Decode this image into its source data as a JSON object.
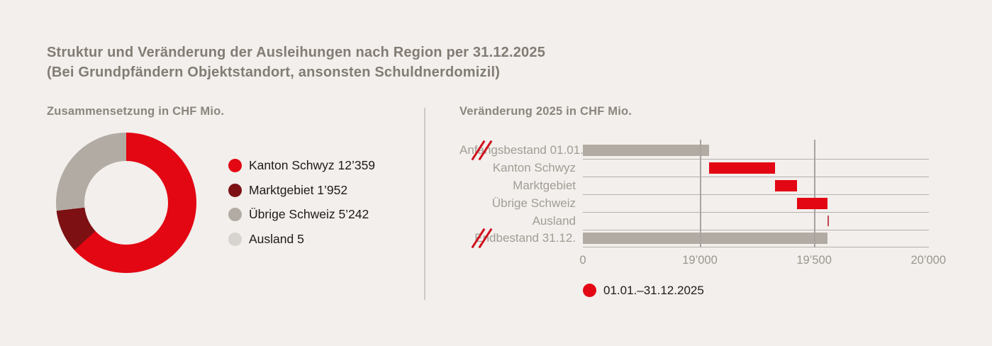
{
  "header": {
    "title_line1": "Struktur und Veränderung der Ausleihungen nach Region per 31.12.2025",
    "title_line2": "(Bei Grundpfändern Objektstandort, ansonsten Schuldnerdomizil)"
  },
  "colors": {
    "background": "#f2efec",
    "red": "#e30613",
    "dark_red": "#7c1013",
    "gray": "#b2aba3",
    "light_gray": "#d7d3ce",
    "ausland_tick_red": "#c04a52"
  },
  "chart_data": [
    {
      "type": "pie",
      "variant": "donut",
      "title": "Zusammensetzung in CHF Mio.",
      "segments": [
        {
          "label": "Kanton Schwyz",
          "value": 12359,
          "value_display": "12’359",
          "color": "#e30613"
        },
        {
          "label": "Marktgebiet",
          "value": 1952,
          "value_display": "1’952",
          "color": "#7c1013"
        },
        {
          "label": "Übrige Schweiz",
          "value": 5242,
          "value_display": "5’242",
          "color": "#b2aba3"
        },
        {
          "label": "Ausland",
          "value": 5,
          "value_display": "5",
          "color": "#d7d3ce"
        }
      ],
      "total": 19558,
      "legend_position": "right"
    },
    {
      "type": "bar",
      "variant": "horizontal-waterfall",
      "title": "Veränderung 2025 in CHF Mio.",
      "axis": {
        "ticks": [
          {
            "label": "0",
            "value": 0
          },
          {
            "label": "19’000",
            "value": 19000
          },
          {
            "label": "19’500",
            "value": 19500
          },
          {
            "label": "20’000",
            "value": 20000
          }
        ],
        "broken_axis_after_zero": true,
        "gridlines_at": [
          19000,
          19500
        ]
      },
      "rows": [
        {
          "label": "Anfangsbestand 01.01.",
          "start": 0,
          "end": 19040,
          "color": "gray",
          "broken": true
        },
        {
          "label": "Kanton Schwyz",
          "start": 19040,
          "end": 19330,
          "color": "red"
        },
        {
          "label": "Marktgebiet",
          "start": 19330,
          "end": 19425,
          "color": "red"
        },
        {
          "label": "Übrige Schweiz",
          "start": 19425,
          "end": 19558,
          "color": "red"
        },
        {
          "label": "Ausland",
          "start": 19558,
          "end": 19558,
          "color": "red",
          "thin": true
        },
        {
          "label": "Endbestand 31.12.",
          "start": 0,
          "end": 19558,
          "color": "gray",
          "broken": true
        }
      ],
      "legend": {
        "label": "01.01.–31.12.2025",
        "color": "#e30613"
      }
    }
  ]
}
